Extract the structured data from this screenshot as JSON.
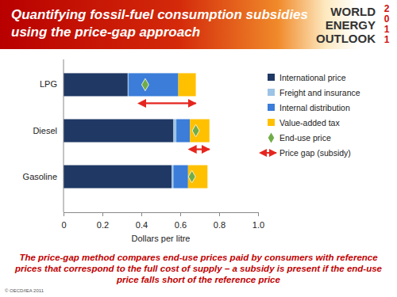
{
  "chart_data": {
    "type": "bar",
    "orientation": "horizontal",
    "stacked": true,
    "title": "Quantifying fossil-fuel consumption subsidies using the price-gap approach",
    "logo": [
      "WORLD",
      "ENERGY",
      "OUTLOOK"
    ],
    "logo_year": "2011",
    "x_label": "Dollars per litre",
    "note": "The price-gap method compares end-use prices paid by consumers with reference prices that correspond to the full cost of supply – a subsidy is present if the end-use price falls short of the reference price",
    "copyright": "© OECD/IEA 2011",
    "categories": [
      "LPG",
      "Diesel",
      "Gasoline"
    ],
    "series": [
      {
        "name": "International price",
        "color": "#1f3864",
        "values": [
          0.33,
          0.565,
          0.555
        ]
      },
      {
        "name": "Freight and insurance",
        "color": "#9dc3e6",
        "values": [
          0.005,
          0.015,
          0.01
        ]
      },
      {
        "name": "Internal distribution",
        "color": "#3b7dd8",
        "values": [
          0.255,
          0.07,
          0.075
        ]
      },
      {
        "name": "Value-added tax",
        "color": "#ffc000",
        "values": [
          0.09,
          0.1,
          0.1
        ]
      },
      {
        "name": "End-use price",
        "type": "marker",
        "marker": "diamond",
        "color": "#70ad47",
        "values": [
          0.42,
          0.68,
          0.66
        ]
      },
      {
        "name": "Price gap (subsidy)",
        "type": "arrow",
        "color": "#e5261f",
        "values": [
          0.26,
          0.07,
          null
        ]
      }
    ],
    "xlim": [
      0,
      1
    ],
    "xticks": [
      0,
      0.2,
      0.4,
      0.6,
      0.8,
      {
        "value": 1,
        "label": "1.0"
      }
    ],
    "grid": false,
    "legend": "right"
  }
}
